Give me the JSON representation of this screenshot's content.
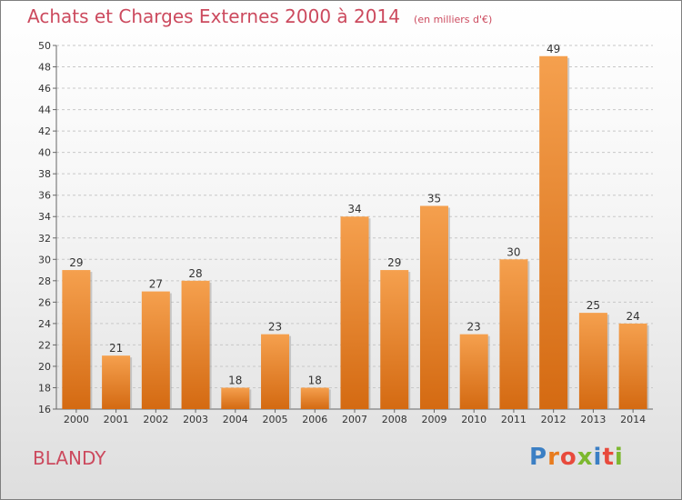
{
  "header": {
    "title": "Achats et Charges Externes 2000 à 2014",
    "subtitle": "(en milliers d'€)"
  },
  "commune": "BLANDY",
  "logo": {
    "text": "Proxiti",
    "letter_colors": [
      "#3b7fc4",
      "#e87c1e",
      "#e84a3c",
      "#7cb82f",
      "#3b7fc4",
      "#e84a3c",
      "#7cb82f"
    ]
  },
  "colors": {
    "bar_top": "#f5a04e",
    "bar_bottom": "#d46a12",
    "bar_shadow": "#a0a0a0",
    "grid": "#c8c8c8"
  },
  "chart_data": {
    "type": "bar",
    "title": "Achats et Charges Externes 2000 à 2014",
    "subtitle": "(en milliers d'€)",
    "categories": [
      "2000",
      "2001",
      "2002",
      "2003",
      "2004",
      "2005",
      "2006",
      "2007",
      "2008",
      "2009",
      "2010",
      "2011",
      "2012",
      "2013",
      "2014"
    ],
    "values": [
      29,
      21,
      27,
      28,
      18,
      23,
      18,
      34,
      29,
      35,
      23,
      30,
      49,
      25,
      24
    ],
    "ylim": [
      16,
      50
    ],
    "yticks": [
      16,
      18,
      20,
      22,
      24,
      26,
      28,
      30,
      32,
      34,
      36,
      38,
      40,
      42,
      44,
      46,
      48,
      50
    ],
    "grid": true,
    "xlabel": "",
    "ylabel": ""
  }
}
